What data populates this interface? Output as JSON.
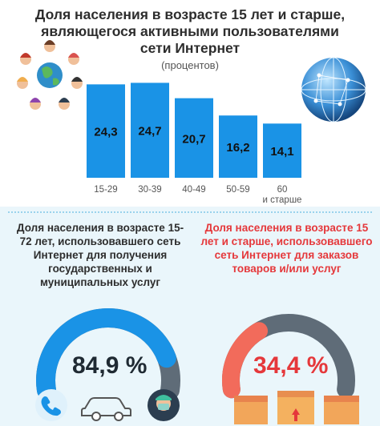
{
  "title": "Доля населения в возрасте 15 лет и старше, являющегося активными пользователями сети Интернет",
  "subtitle": "(процентов)",
  "chart_data": [
    {
      "type": "bar",
      "title": "Доля населения в возрасте 15 лет и старше, являющегося активными пользователями сети Интернет",
      "subtitle": "(процентов)",
      "categories": [
        "15-29",
        "30-39",
        "40-49",
        "50-59",
        "60 и старше"
      ],
      "values": [
        24.3,
        24.7,
        20.7,
        16.2,
        14.1
      ],
      "value_labels": [
        "24,3",
        "24,7",
        "20,7",
        "16,2",
        "14,1"
      ],
      "ylim": [
        0,
        25
      ],
      "grid": false,
      "color": "#1a93e6"
    },
    {
      "type": "gauge",
      "title": "Доля населения в возрасте 15-72 лет, использовавшего сеть Интернет для получения государственных и муниципальных услуг",
      "value": 84.9,
      "label": "84,9 %",
      "max": 100,
      "colors": {
        "fill": "#1a93e6",
        "track": "#5f6c78"
      }
    },
    {
      "type": "gauge",
      "title": "Доля населения в возрасте 15 лет и старше, использовавшего сеть Интернет для заказов товаров и/или услуг",
      "value": 34.4,
      "label": "34,4 %",
      "max": 100,
      "colors": {
        "fill": "#f26b5b",
        "track": "#5f6c78"
      }
    }
  ],
  "left_panel": {
    "text": "Доля населения в возрасте 15-72 лет, использовавшего сеть Интернет для получения государственных и муниципальных услуг",
    "value": "84,9 %",
    "icons": [
      "phone-icon",
      "car-icon",
      "doctor-icon"
    ]
  },
  "right_panel": {
    "text": "Доля населения в возрасте 15 лет и старше, использовавшего сеть Интернет для заказов товаров и/или услуг",
    "value": "34,4 %",
    "icons": [
      "boxes-icon"
    ]
  },
  "colors": {
    "bar": "#1a93e6",
    "accent_red": "#e5383b",
    "gauge_track": "#5f6c78",
    "gauge_red": "#f26b5b",
    "lower_bg": "#eaf6fb"
  }
}
